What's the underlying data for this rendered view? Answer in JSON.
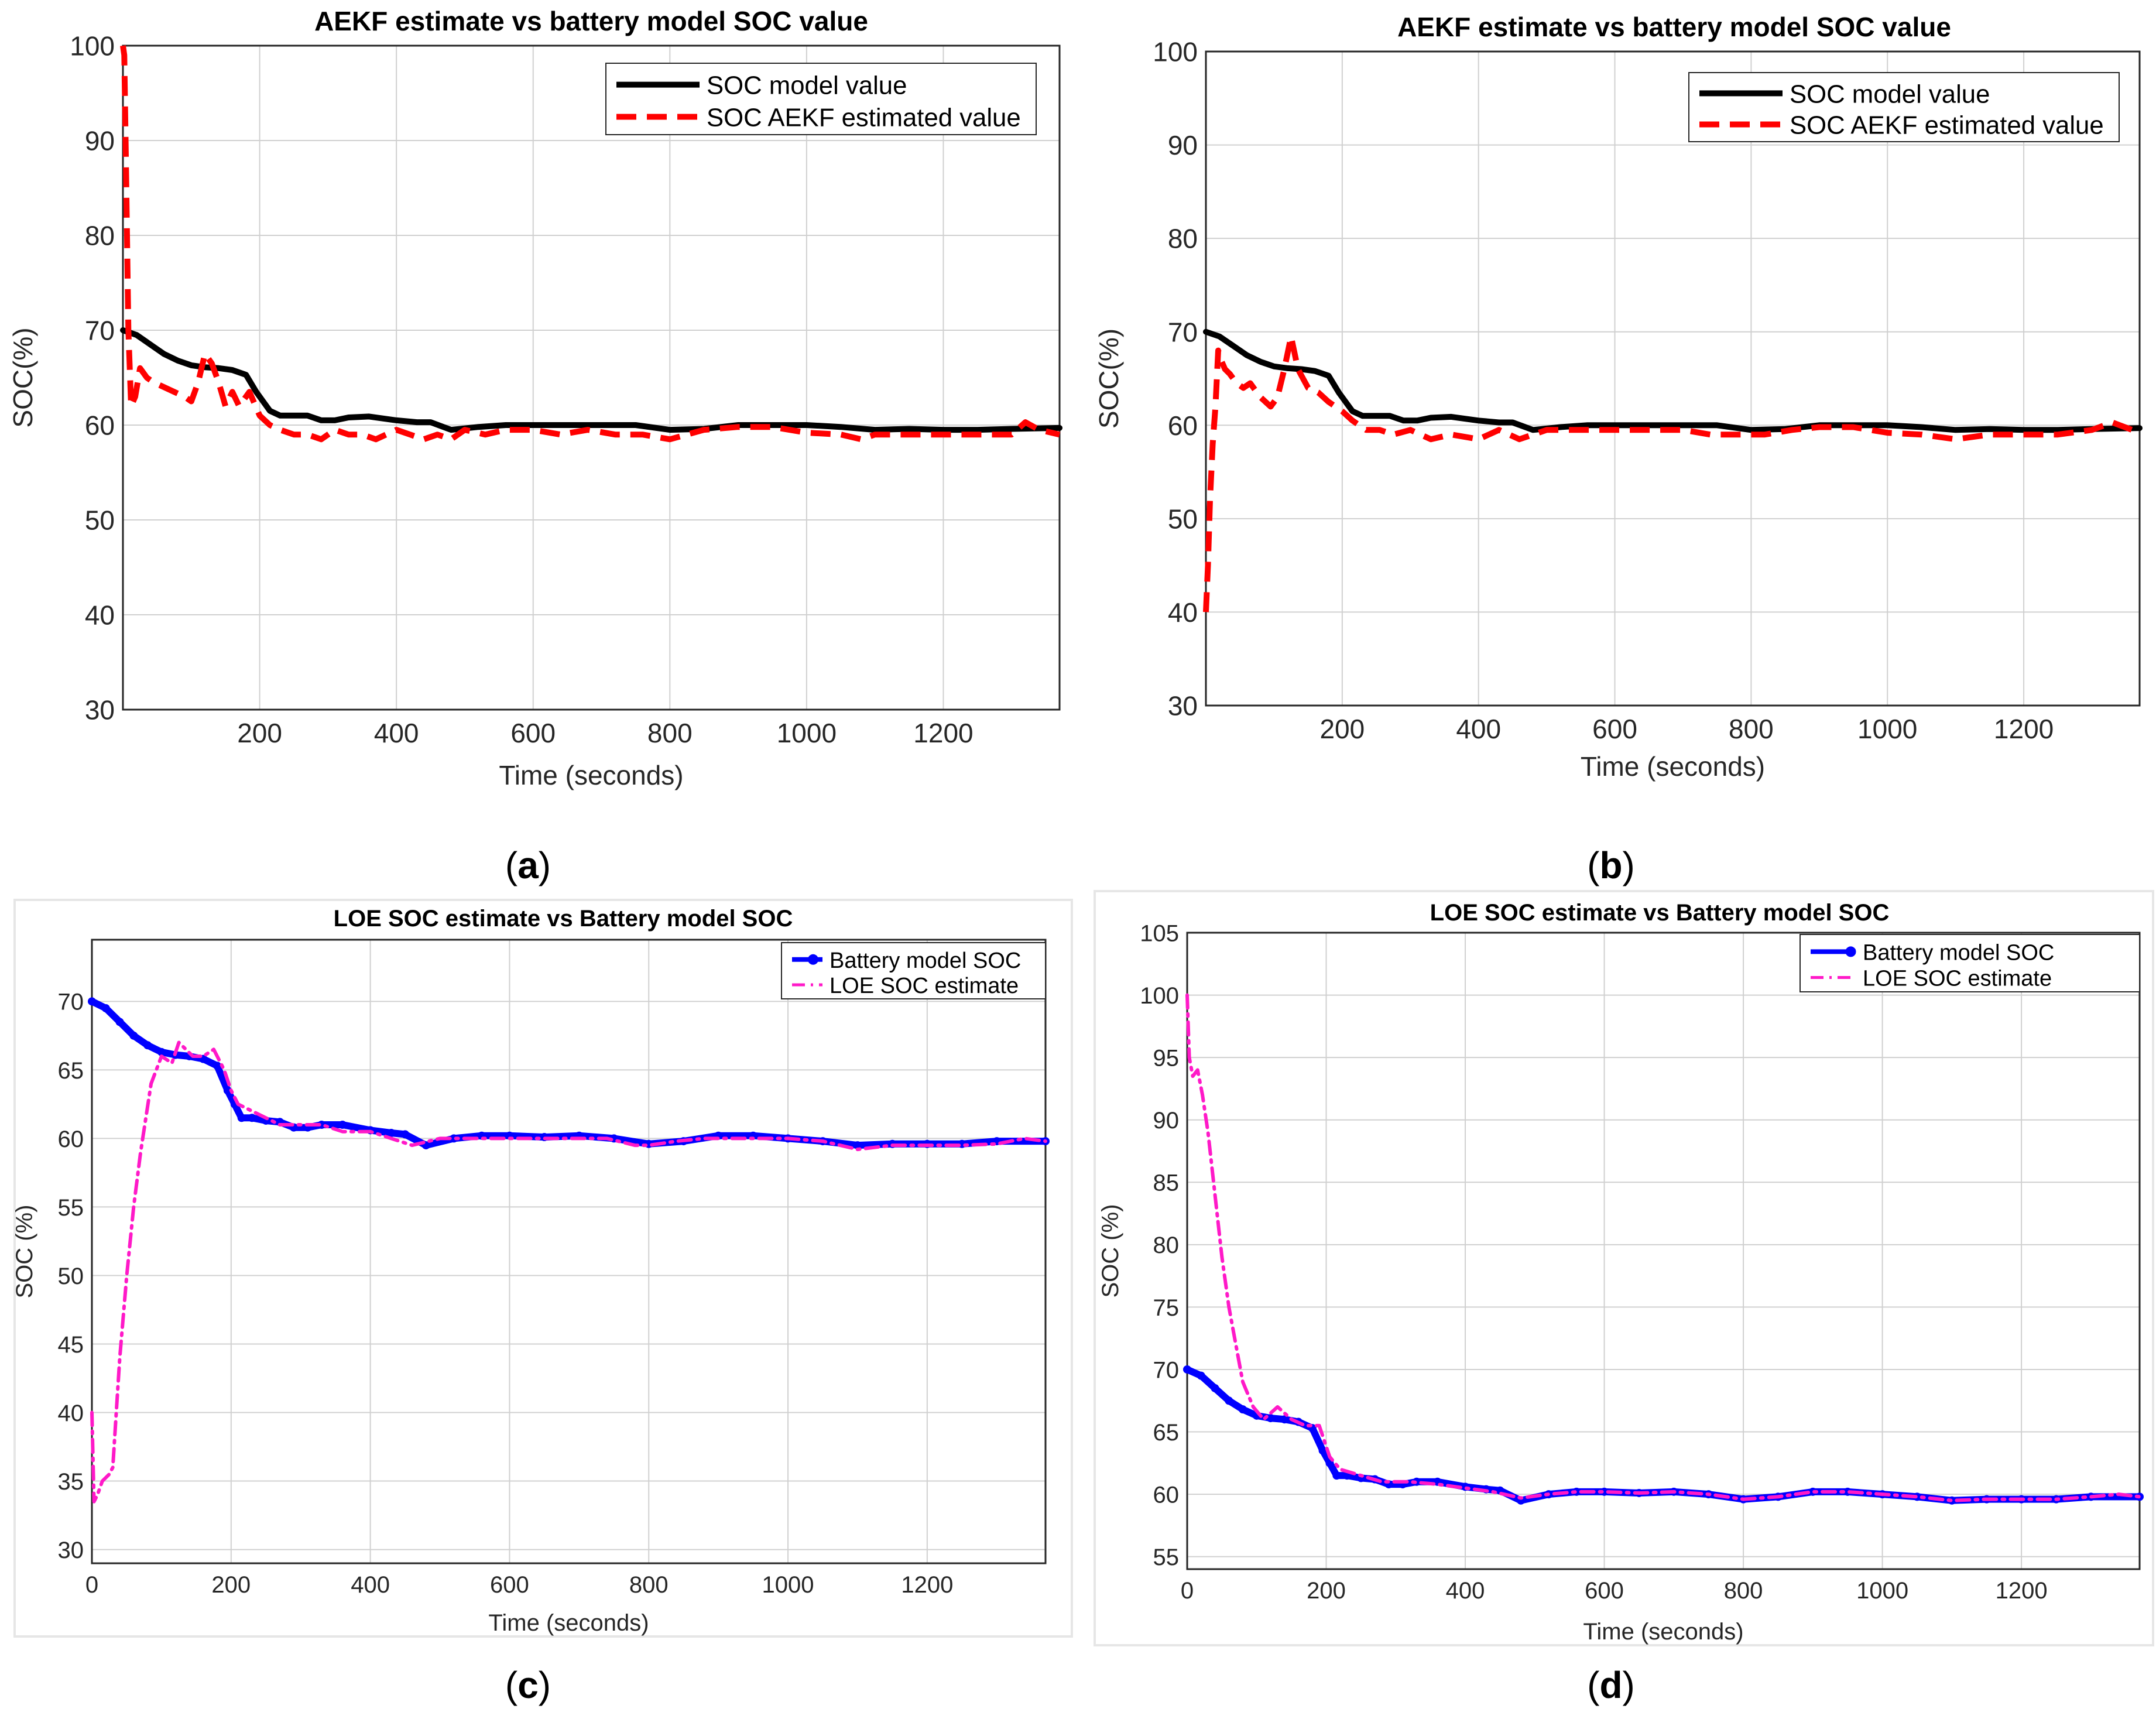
{
  "figure": {
    "captions": [
      "a",
      "b",
      "c",
      "d"
    ]
  },
  "colors": {
    "model_black": "#000000",
    "aekf_red": "#ff0000",
    "battery_blue": "#0000ff",
    "loe_magenta": "#ff19c8",
    "grid": "#d0d0d0"
  },
  "chart_data": [
    {
      "id": "a",
      "type": "line",
      "title": "AEKF estimate vs battery model  SOC value",
      "xlabel": "Time (seconds)",
      "ylabel": "SOC(%)",
      "xlim": [
        0,
        1370
      ],
      "ylim": [
        30,
        100
      ],
      "xticks": [
        200,
        400,
        600,
        800,
        1000,
        1200
      ],
      "yticks": [
        30,
        40,
        50,
        60,
        70,
        80,
        90,
        100
      ],
      "legend_position": "top-right",
      "series": [
        {
          "name": "SOC model value",
          "style": "solid-thick",
          "x": [
            0,
            20,
            40,
            60,
            80,
            100,
            120,
            140,
            160,
            180,
            195,
            205,
            215,
            230,
            250,
            270,
            290,
            310,
            330,
            360,
            400,
            430,
            450,
            480,
            520,
            560,
            600,
            650,
            700,
            750,
            800,
            850,
            900,
            950,
            1000,
            1050,
            1100,
            1150,
            1200,
            1250,
            1300,
            1370
          ],
          "y": [
            70,
            69.5,
            68.5,
            67.5,
            66.8,
            66.3,
            66.1,
            66,
            65.8,
            65.3,
            63.5,
            62.5,
            61.5,
            61,
            61,
            61,
            60.5,
            60.5,
            60.8,
            60.9,
            60.5,
            60.3,
            60.3,
            59.5,
            59.8,
            60,
            60,
            60,
            60,
            60,
            59.5,
            59.6,
            60,
            60,
            60,
            59.8,
            59.5,
            59.6,
            59.5,
            59.5,
            59.6,
            59.7
          ]
        },
        {
          "name": "SOC AEKF estimated value",
          "style": "dashed-thick",
          "x": [
            0,
            2,
            5,
            8,
            12,
            18,
            25,
            35,
            45,
            60,
            75,
            90,
            100,
            110,
            120,
            130,
            140,
            150,
            160,
            170,
            185,
            200,
            215,
            230,
            250,
            270,
            290,
            310,
            330,
            350,
            370,
            400,
            420,
            440,
            460,
            480,
            500,
            530,
            560,
            600,
            640,
            680,
            720,
            760,
            800,
            850,
            900,
            950,
            1000,
            1050,
            1080,
            1100,
            1150,
            1200,
            1250,
            1300,
            1320,
            1340,
            1370
          ],
          "y": [
            100,
            99,
            85,
            70,
            62,
            63,
            66,
            65,
            64.5,
            64,
            63.5,
            63,
            62.5,
            64.5,
            67.5,
            66.5,
            64.5,
            62,
            63.5,
            62,
            63.5,
            61,
            60,
            59.5,
            59,
            59,
            58.5,
            59.5,
            59,
            59,
            58.5,
            59.5,
            59,
            58.5,
            59,
            58.5,
            59.5,
            59,
            59.5,
            59.5,
            59,
            59.5,
            59,
            59,
            58.5,
            59.5,
            59.8,
            59.8,
            59.2,
            59,
            58.5,
            59,
            59,
            59,
            59,
            59,
            60.3,
            59.5,
            59
          ]
        }
      ]
    },
    {
      "id": "b",
      "type": "line",
      "title": "AEKF estimate vs battery model SOC value",
      "xlabel": "Time (seconds)",
      "ylabel": "SOC(%)",
      "xlim": [
        0,
        1370
      ],
      "ylim": [
        30,
        100
      ],
      "xticks": [
        200,
        400,
        600,
        800,
        1000,
        1200
      ],
      "yticks": [
        30,
        40,
        50,
        60,
        70,
        80,
        90,
        100
      ],
      "legend_position": "top-right",
      "series": [
        {
          "name": "SOC model value",
          "style": "solid-thick",
          "x": [
            0,
            20,
            40,
            60,
            80,
            100,
            120,
            140,
            160,
            180,
            195,
            205,
            215,
            230,
            250,
            270,
            290,
            310,
            330,
            360,
            400,
            430,
            450,
            480,
            520,
            560,
            600,
            650,
            700,
            750,
            800,
            850,
            900,
            950,
            1000,
            1050,
            1100,
            1150,
            1200,
            1250,
            1300,
            1370
          ],
          "y": [
            70,
            69.5,
            68.5,
            67.5,
            66.8,
            66.3,
            66.1,
            66,
            65.8,
            65.3,
            63.5,
            62.5,
            61.5,
            61,
            61,
            61,
            60.5,
            60.5,
            60.8,
            60.9,
            60.5,
            60.3,
            60.3,
            59.5,
            59.8,
            60,
            60,
            60,
            60,
            60,
            59.5,
            59.6,
            60,
            60,
            60,
            59.8,
            59.5,
            59.6,
            59.5,
            59.5,
            59.6,
            59.7
          ]
        },
        {
          "name": "SOC AEKF estimated value",
          "style": "dashed-thick",
          "x": [
            0,
            3,
            6,
            10,
            14,
            18,
            22,
            28,
            35,
            45,
            55,
            65,
            80,
            95,
            105,
            115,
            125,
            135,
            150,
            165,
            180,
            200,
            215,
            235,
            255,
            275,
            300,
            330,
            360,
            400,
            430,
            460,
            500,
            540,
            580,
            620,
            660,
            700,
            740,
            780,
            820,
            860,
            900,
            950,
            1000,
            1050,
            1100,
            1150,
            1200,
            1250,
            1300,
            1330,
            1370
          ],
          "y": [
            40,
            45,
            52,
            58,
            62,
            68,
            67,
            66,
            65.5,
            64.5,
            64,
            64.5,
            63,
            62,
            63,
            66,
            69.5,
            66,
            64,
            63.5,
            62.5,
            61.5,
            60.5,
            59.5,
            59.5,
            59,
            59.5,
            58.5,
            59,
            58.5,
            59.5,
            58.5,
            59.5,
            59.5,
            59.5,
            59.5,
            59.5,
            59.5,
            59,
            59,
            59,
            59.5,
            59.8,
            59.8,
            59.2,
            59,
            58.5,
            59,
            59,
            59,
            59.5,
            60.3,
            59.2
          ]
        }
      ]
    },
    {
      "id": "c",
      "type": "line",
      "title": "LOE SOC  estimate vs  Battery model SOC",
      "xlabel": "Time (seconds)",
      "ylabel": "SOC (%)",
      "xlim": [
        0,
        1370
      ],
      "ylim": [
        29,
        74.5
      ],
      "xticks": [
        0,
        200,
        400,
        600,
        800,
        1000,
        1200
      ],
      "yticks": [
        30,
        35,
        40,
        45,
        50,
        55,
        60,
        65,
        70
      ],
      "legend_position": "top-right",
      "series": [
        {
          "name": "Battery model  SOC",
          "style": "solid-thick-markers",
          "x": [
            0,
            20,
            40,
            60,
            80,
            100,
            120,
            140,
            160,
            180,
            195,
            205,
            215,
            230,
            250,
            270,
            290,
            310,
            330,
            360,
            400,
            430,
            450,
            480,
            520,
            560,
            600,
            650,
            700,
            750,
            800,
            850,
            900,
            950,
            1000,
            1050,
            1100,
            1150,
            1200,
            1250,
            1300,
            1370
          ],
          "y": [
            70,
            69.5,
            68.5,
            67.5,
            66.8,
            66.3,
            66.1,
            66,
            65.8,
            65.3,
            63.5,
            62.5,
            61.5,
            61.5,
            61.3,
            61.2,
            60.8,
            60.8,
            61,
            61,
            60.6,
            60.4,
            60.3,
            59.5,
            60,
            60.2,
            60.2,
            60.1,
            60.2,
            60,
            59.6,
            59.8,
            60.2,
            60.2,
            60,
            59.8,
            59.5,
            59.6,
            59.6,
            59.6,
            59.8,
            59.8
          ]
        },
        {
          "name": "LOE  SOC  estimate",
          "style": "dashdot",
          "x": [
            0,
            3,
            8,
            15,
            25,
            30,
            35,
            40,
            50,
            60,
            70,
            85,
            100,
            115,
            125,
            135,
            145,
            160,
            175,
            190,
            200,
            210,
            230,
            250,
            270,
            300,
            330,
            360,
            400,
            430,
            460,
            500,
            540,
            580,
            620,
            660,
            700,
            740,
            780,
            800,
            840,
            880,
            920,
            960,
            1000,
            1050,
            1100,
            1150,
            1200,
            1250,
            1300,
            1340,
            1370
          ],
          "y": [
            40,
            33.5,
            34,
            35,
            35.5,
            36,
            40,
            44,
            50,
            55,
            59,
            64,
            66,
            65.5,
            67,
            66.5,
            66,
            66,
            66.5,
            65,
            63.5,
            62.5,
            62,
            61.5,
            61,
            61,
            61,
            60.5,
            60.5,
            60,
            59.5,
            60,
            60,
            60,
            60,
            60,
            60,
            60,
            59.5,
            59.5,
            59.8,
            60,
            60,
            60,
            60,
            59.8,
            59.2,
            59.5,
            59.5,
            59.5,
            59.6,
            60,
            59.8
          ]
        }
      ]
    },
    {
      "id": "d",
      "type": "line",
      "title": "LOE SOC estimate vs Battery model SOC",
      "xlabel": "Time (seconds)",
      "ylabel": "SOC (%)",
      "xlim": [
        0,
        1370
      ],
      "ylim": [
        54,
        105
      ],
      "xticks": [
        0,
        200,
        400,
        600,
        800,
        1000,
        1200
      ],
      "yticks": [
        55,
        60,
        65,
        70,
        75,
        80,
        85,
        90,
        95,
        100,
        105
      ],
      "legend_position": "top-right",
      "series": [
        {
          "name": "Battery model SOC",
          "style": "solid-thick-markers",
          "x": [
            0,
            20,
            40,
            60,
            80,
            100,
            120,
            140,
            160,
            180,
            195,
            205,
            215,
            230,
            250,
            270,
            290,
            310,
            330,
            360,
            400,
            430,
            450,
            480,
            520,
            560,
            600,
            650,
            700,
            750,
            800,
            850,
            900,
            950,
            1000,
            1050,
            1100,
            1150,
            1200,
            1250,
            1300,
            1370
          ],
          "y": [
            70,
            69.5,
            68.5,
            67.5,
            66.8,
            66.3,
            66.1,
            66,
            65.8,
            65.3,
            63.5,
            62.5,
            61.5,
            61.5,
            61.3,
            61.2,
            60.8,
            60.8,
            61,
            61,
            60.6,
            60.4,
            60.3,
            59.5,
            60,
            60.2,
            60.2,
            60.1,
            60.2,
            60,
            59.6,
            59.8,
            60.2,
            60.2,
            60,
            59.8,
            59.5,
            59.6,
            59.6,
            59.6,
            59.8,
            59.8
          ]
        },
        {
          "name": "LOE  SOC  estimate",
          "style": "dashdot",
          "x": [
            0,
            3,
            8,
            15,
            22,
            30,
            40,
            50,
            60,
            70,
            80,
            95,
            110,
            130,
            150,
            170,
            190,
            205,
            220,
            250,
            280,
            320,
            360,
            400,
            440,
            480,
            520,
            560,
            600,
            650,
            700,
            750,
            800,
            850,
            900,
            950,
            1000,
            1050,
            1100,
            1150,
            1200,
            1250,
            1300,
            1340,
            1370
          ],
          "y": [
            100,
            95,
            93.5,
            94,
            92,
            89,
            84,
            79,
            75,
            72,
            69,
            67,
            66,
            67,
            66,
            65.5,
            65.5,
            63,
            62,
            61.5,
            61,
            61,
            60.8,
            60.5,
            60.2,
            59.7,
            60,
            60.2,
            60.2,
            60.1,
            60.2,
            60,
            59.6,
            59.8,
            60.2,
            60.2,
            60,
            59.8,
            59.5,
            59.6,
            59.6,
            59.6,
            59.8,
            60,
            59.8
          ]
        }
      ]
    }
  ]
}
